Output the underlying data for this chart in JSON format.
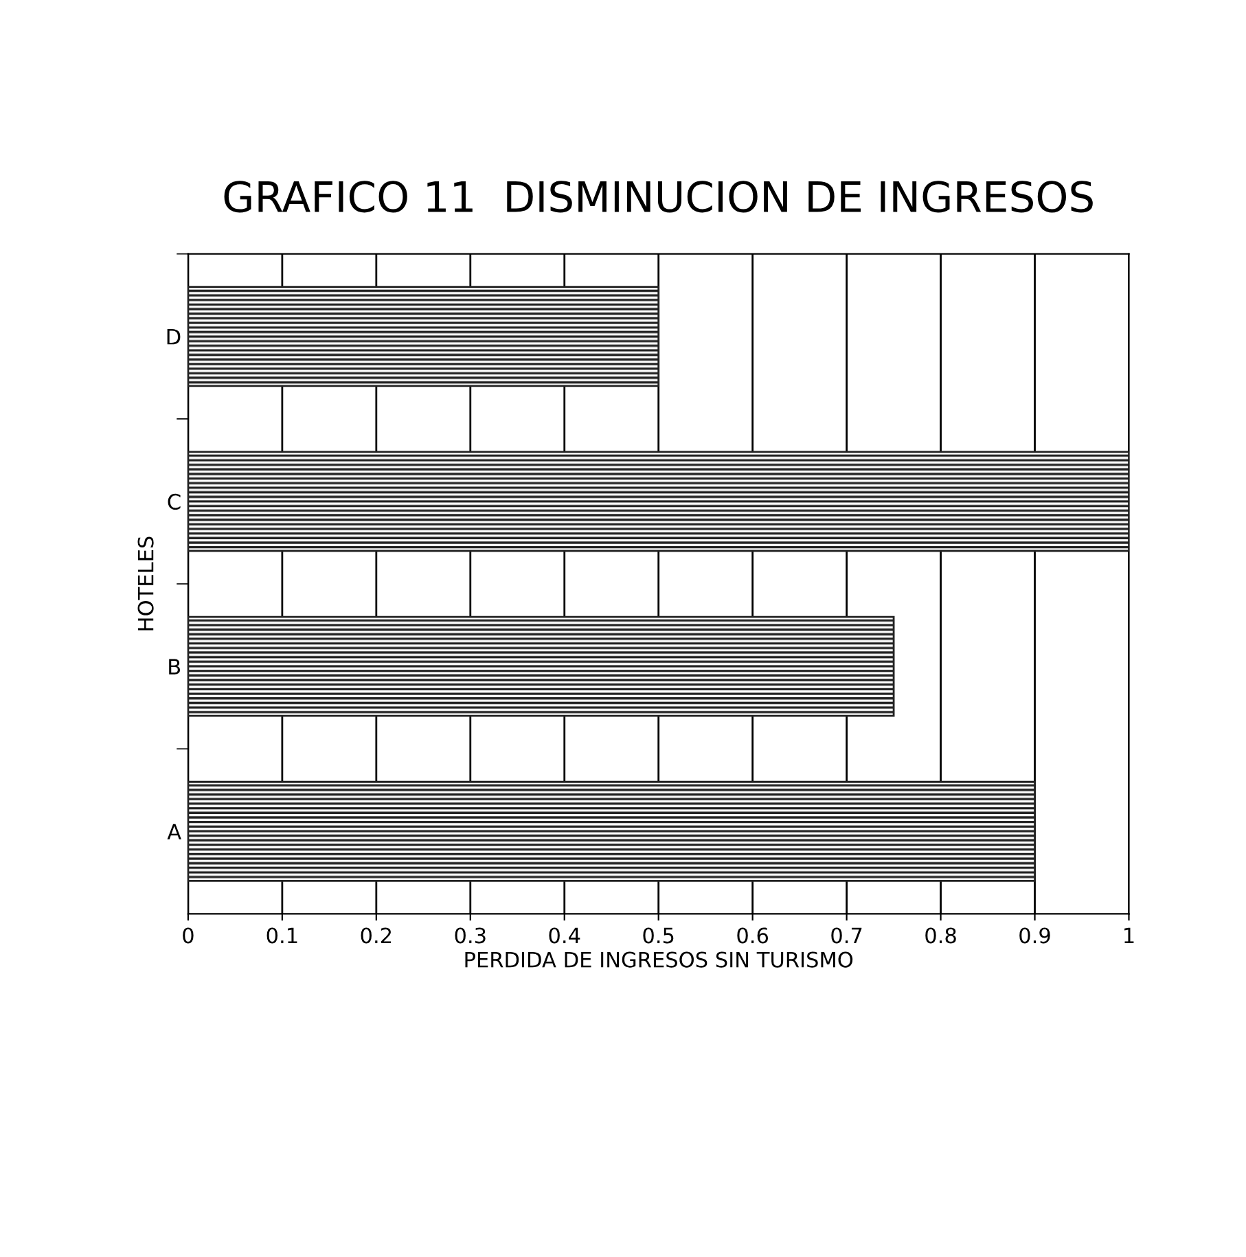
{
  "chart_data": {
    "type": "bar",
    "orientation": "horizontal",
    "title": "GRAFICO 11  DISMINUCION DE INGRESOS",
    "xlabel": "PERDIDA DE INGRESOS SIN TURISMO",
    "ylabel": "HOTELES",
    "categories": [
      "D",
      "C",
      "B",
      "A"
    ],
    "values": [
      0.5,
      1,
      0.75,
      0.9
    ],
    "color": "#222222",
    "xlim": [
      0,
      1
    ],
    "xticks": [
      0,
      0.1,
      0.2,
      0.3,
      0.4,
      0.5,
      0.6,
      0.7,
      0.8,
      0.9,
      1
    ],
    "grid": "x"
  }
}
